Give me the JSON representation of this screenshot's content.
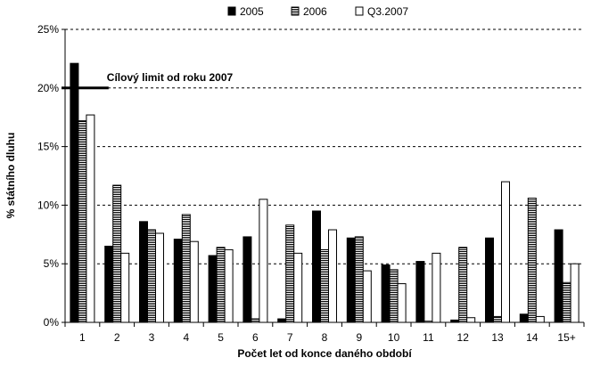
{
  "chart_data": {
    "type": "bar",
    "title": "",
    "xlabel": "Počet let od konce daného období",
    "ylabel": "% státního dluhu",
    "ylim": [
      0,
      25
    ],
    "yticks": [
      "0%",
      "5%",
      "10%",
      "15%",
      "20%",
      "25%"
    ],
    "categories": [
      "1",
      "2",
      "3",
      "4",
      "5",
      "6",
      "7",
      "8",
      "9",
      "10",
      "11",
      "12",
      "13",
      "14",
      "15+"
    ],
    "series": [
      {
        "name": "2005",
        "pattern": "solid-black",
        "values": [
          22.1,
          6.5,
          8.6,
          7.1,
          5.7,
          7.3,
          0.3,
          9.5,
          7.2,
          4.9,
          5.2,
          0.2,
          7.2,
          0.7,
          7.9
        ]
      },
      {
        "name": "2006",
        "pattern": "horizontal-stripes",
        "values": [
          17.2,
          11.7,
          7.9,
          9.2,
          6.4,
          0.3,
          8.3,
          6.2,
          7.3,
          4.5,
          0.1,
          6.4,
          0.5,
          10.6,
          3.4
        ]
      },
      {
        "name": "Q3.2007",
        "pattern": "white",
        "values": [
          17.7,
          5.9,
          7.6,
          6.9,
          6.2,
          10.5,
          5.9,
          7.9,
          4.4,
          3.3,
          5.9,
          0.4,
          12.0,
          0.5,
          5.0
        ]
      }
    ],
    "annotation": {
      "label": "Cílový limit od roku 2007",
      "value": 20
    },
    "grid": "horizontal-dashed",
    "legend": "top-center",
    "colors": {
      "bar_dark": "#000000",
      "bar_light": "#ffffff",
      "stripe": "#000000"
    }
  }
}
